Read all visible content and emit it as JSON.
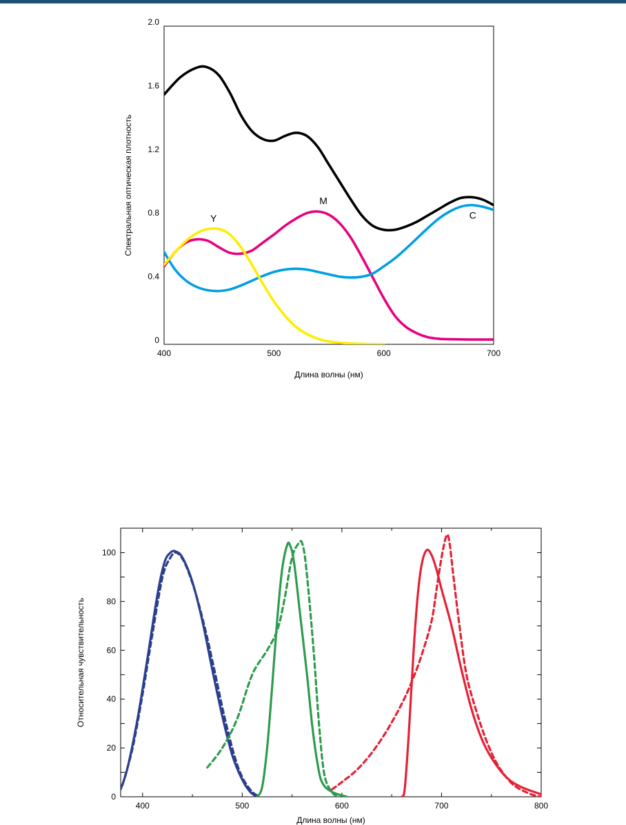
{
  "chart_data": [
    {
      "type": "line",
      "title": "",
      "xlabel": "Длина волны (нм)",
      "ylabel": "Спектральная оптическая плотность",
      "xlim": [
        400,
        700
      ],
      "ylim": [
        0,
        2.0
      ],
      "x_ticks": [
        "400",
        "500",
        "600",
        "700"
      ],
      "y_ticks": [
        "0",
        "0.4",
        "0.8",
        "1.2",
        "1.6",
        "2.0"
      ],
      "grid": false,
      "series": [
        {
          "color": "#000000",
          "points": [
            [
              400,
              1.57
            ],
            [
              415,
              1.68
            ],
            [
              430,
              1.74
            ],
            [
              440,
              1.74
            ],
            [
              450,
              1.69
            ],
            [
              460,
              1.58
            ],
            [
              470,
              1.44
            ],
            [
              480,
              1.34
            ],
            [
              490,
              1.29
            ],
            [
              500,
              1.28
            ],
            [
              510,
              1.31
            ],
            [
              520,
              1.33
            ],
            [
              530,
              1.31
            ],
            [
              540,
              1.24
            ],
            [
              550,
              1.13
            ],
            [
              560,
              1.02
            ],
            [
              570,
              0.91
            ],
            [
              580,
              0.81
            ],
            [
              590,
              0.745
            ],
            [
              600,
              0.72
            ],
            [
              610,
              0.72
            ],
            [
              620,
              0.74
            ],
            [
              630,
              0.77
            ],
            [
              640,
              0.81
            ],
            [
              650,
              0.85
            ],
            [
              660,
              0.89
            ],
            [
              670,
              0.92
            ],
            [
              680,
              0.925
            ],
            [
              690,
              0.91
            ],
            [
              700,
              0.875
            ]
          ]
        },
        {
          "name": "M",
          "color": "#e6007e",
          "points": [
            [
              400,
              0.49
            ],
            [
              410,
              0.58
            ],
            [
              420,
              0.64
            ],
            [
              430,
              0.66
            ],
            [
              440,
              0.65
            ],
            [
              450,
              0.61
            ],
            [
              460,
              0.575
            ],
            [
              470,
              0.57
            ],
            [
              480,
              0.59
            ],
            [
              490,
              0.64
            ],
            [
              500,
              0.69
            ],
            [
              510,
              0.745
            ],
            [
              520,
              0.79
            ],
            [
              530,
              0.825
            ],
            [
              540,
              0.835
            ],
            [
              550,
              0.815
            ],
            [
              560,
              0.76
            ],
            [
              570,
              0.67
            ],
            [
              580,
              0.55
            ],
            [
              590,
              0.42
            ],
            [
              600,
              0.29
            ],
            [
              610,
              0.18
            ],
            [
              620,
              0.11
            ],
            [
              630,
              0.07
            ],
            [
              640,
              0.045
            ],
            [
              650,
              0.035
            ],
            [
              660,
              0.032
            ],
            [
              680,
              0.03
            ],
            [
              700,
              0.03
            ]
          ]
        },
        {
          "name": "C",
          "color": "#009fe3",
          "points": [
            [
              400,
              0.58
            ],
            [
              410,
              0.47
            ],
            [
              420,
              0.4
            ],
            [
              430,
              0.36
            ],
            [
              440,
              0.34
            ],
            [
              450,
              0.335
            ],
            [
              460,
              0.345
            ],
            [
              470,
              0.37
            ],
            [
              480,
              0.4
            ],
            [
              490,
              0.43
            ],
            [
              500,
              0.455
            ],
            [
              510,
              0.47
            ],
            [
              520,
              0.475
            ],
            [
              530,
              0.47
            ],
            [
              540,
              0.455
            ],
            [
              550,
              0.44
            ],
            [
              560,
              0.425
            ],
            [
              570,
              0.42
            ],
            [
              580,
              0.425
            ],
            [
              590,
              0.445
            ],
            [
              600,
              0.49
            ],
            [
              610,
              0.54
            ],
            [
              620,
              0.6
            ],
            [
              630,
              0.665
            ],
            [
              640,
              0.73
            ],
            [
              650,
              0.79
            ],
            [
              660,
              0.835
            ],
            [
              670,
              0.865
            ],
            [
              680,
              0.875
            ],
            [
              690,
              0.865
            ],
            [
              700,
              0.845
            ]
          ]
        },
        {
          "name": "Y",
          "color": "#ffed00",
          "points": [
            [
              400,
              0.5
            ],
            [
              410,
              0.58
            ],
            [
              420,
              0.65
            ],
            [
              430,
              0.7
            ],
            [
              440,
              0.725
            ],
            [
              450,
              0.725
            ],
            [
              460,
              0.69
            ],
            [
              470,
              0.61
            ],
            [
              480,
              0.5
            ],
            [
              490,
              0.38
            ],
            [
              500,
              0.27
            ],
            [
              510,
              0.18
            ],
            [
              520,
              0.11
            ],
            [
              530,
              0.065
            ],
            [
              540,
              0.035
            ],
            [
              550,
              0.018
            ],
            [
              560,
              0.01
            ],
            [
              575,
              0.004
            ],
            [
              590,
              0.001
            ],
            [
              600,
              0.0
            ]
          ]
        }
      ],
      "annotations": [
        {
          "text": "Y",
          "x": 445,
          "y": 0.77
        },
        {
          "text": "M",
          "x": 545,
          "y": 0.88
        },
        {
          "text": "C",
          "x": 681,
          "y": 0.79
        }
      ]
    },
    {
      "type": "line",
      "title": "",
      "xlabel": "Длина волны (нм)",
      "ylabel": "Относительная чувствительность",
      "xlim": [
        378,
        800
      ],
      "ylim": [
        0,
        110
      ],
      "x_ticks": [
        "400",
        "500",
        "600",
        "700",
        "800"
      ],
      "y_ticks": [
        "0",
        "20",
        "40",
        "60",
        "80",
        "100"
      ],
      "grid": false,
      "series": [
        {
          "color": "#2b3f8c",
          "dash": false,
          "points": [
            [
              378,
              3
            ],
            [
              385,
              12
            ],
            [
              395,
              32
            ],
            [
              405,
              57
            ],
            [
              415,
              83
            ],
            [
              422,
              96
            ],
            [
              428,
              100
            ],
            [
              433,
              100.5
            ],
            [
              440,
              98
            ],
            [
              450,
              88
            ],
            [
              460,
              72
            ],
            [
              470,
              52
            ],
            [
              480,
              33
            ],
            [
              490,
              17
            ],
            [
              500,
              7
            ],
            [
              508,
              2
            ],
            [
              515,
              0
            ]
          ]
        },
        {
          "color": "#2b3f8c",
          "dash": true,
          "points": [
            [
              380,
              5
            ],
            [
              390,
              20
            ],
            [
              400,
              42
            ],
            [
              410,
              67
            ],
            [
              420,
              90
            ],
            [
              428,
              98
            ],
            [
              434,
              100
            ],
            [
              442,
              96
            ],
            [
              452,
              85
            ],
            [
              462,
              70
            ],
            [
              472,
              52
            ],
            [
              482,
              33
            ],
            [
              492,
              17
            ],
            [
              500,
              8
            ],
            [
              510,
              2
            ],
            [
              518,
              0
            ]
          ]
        },
        {
          "color": "#2e9b4e",
          "dash": false,
          "points": [
            [
              515,
              0
            ],
            [
              520,
              4
            ],
            [
              525,
              20
            ],
            [
              530,
              45
            ],
            [
              535,
              72
            ],
            [
              540,
              93
            ],
            [
              545,
              103
            ],
            [
              548,
              103
            ],
            [
              552,
              96
            ],
            [
              558,
              75
            ],
            [
              565,
              50
            ],
            [
              570,
              30
            ],
            [
              575,
              15
            ],
            [
              580,
              6
            ],
            [
              590,
              2
            ],
            [
              605,
              0
            ]
          ]
        },
        {
          "color": "#2e9b4e",
          "dash": true,
          "points": [
            [
              465,
              12
            ],
            [
              480,
              20
            ],
            [
              495,
              32
            ],
            [
              510,
              50
            ],
            [
              525,
              60
            ],
            [
              535,
              68
            ],
            [
              542,
              80
            ],
            [
              550,
              98
            ],
            [
              557,
              104
            ],
            [
              560,
              104
            ],
            [
              563,
              98
            ],
            [
              567,
              82
            ],
            [
              572,
              58
            ],
            [
              577,
              30
            ],
            [
              582,
              10
            ],
            [
              588,
              3
            ],
            [
              595,
              0
            ]
          ]
        },
        {
          "color": "#e52135",
          "dash": false,
          "points": [
            [
              660,
              0
            ],
            [
              663,
              3
            ],
            [
              667,
              25
            ],
            [
              672,
              60
            ],
            [
              676,
              82
            ],
            [
              680,
              95
            ],
            [
              685,
              101
            ],
            [
              690,
              99
            ],
            [
              695,
              93
            ],
            [
              700,
              85
            ],
            [
              710,
              70
            ],
            [
              720,
              52
            ],
            [
              730,
              36
            ],
            [
              740,
              24
            ],
            [
              750,
              16
            ],
            [
              765,
              8
            ],
            [
              780,
              4
            ],
            [
              800,
              1
            ]
          ]
        },
        {
          "color": "#e52135",
          "dash": true,
          "points": [
            [
              590,
              3
            ],
            [
              600,
              6
            ],
            [
              615,
              11
            ],
            [
              630,
              18
            ],
            [
              645,
              27
            ],
            [
              660,
              38
            ],
            [
              670,
              47
            ],
            [
              680,
              58
            ],
            [
              690,
              72
            ],
            [
              695,
              85
            ],
            [
              700,
              98
            ],
            [
              705,
              107
            ],
            [
              708,
              104
            ],
            [
              712,
              90
            ],
            [
              718,
              70
            ],
            [
              725,
              50
            ],
            [
              735,
              35
            ],
            [
              745,
              23
            ],
            [
              755,
              14
            ],
            [
              765,
              8
            ],
            [
              775,
              4
            ],
            [
              790,
              1
            ],
            [
              800,
              0
            ]
          ]
        }
      ]
    }
  ]
}
